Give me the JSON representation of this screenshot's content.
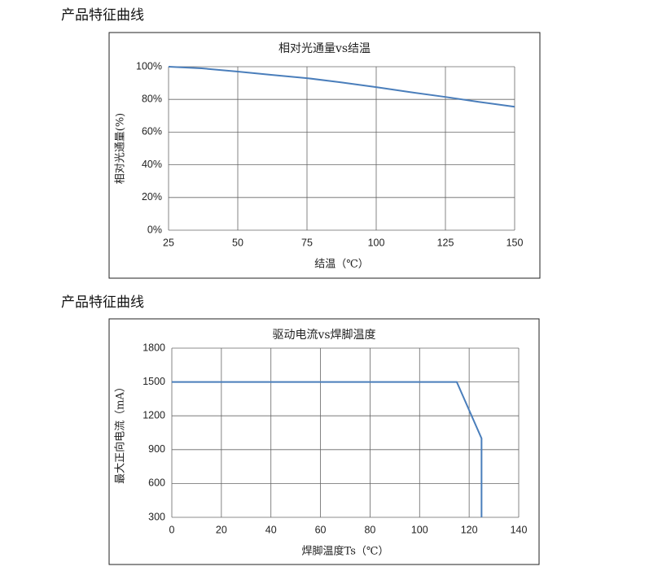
{
  "headings": [
    "产品特征曲线",
    "产品特征曲线"
  ],
  "chart_data": [
    {
      "type": "line",
      "title": "相对光通量vs结温",
      "x_label": "结温（℃）",
      "y_label": "相对光通量(%)",
      "x": [
        25,
        37,
        50,
        62,
        75,
        87,
        100,
        112,
        125,
        137,
        150
      ],
      "series": [
        {
          "color": "#4a7ebb",
          "values": [
            100,
            99,
            97,
            95,
            93,
            90.5,
            87.5,
            84.5,
            81.5,
            78.5,
            75.5
          ]
        }
      ],
      "xlim": [
        25,
        150
      ],
      "xticks": [
        25,
        50,
        75,
        100,
        125,
        150
      ],
      "ylim": [
        0,
        100
      ],
      "yticks": [
        {
          "value": 0,
          "label": "0%"
        },
        {
          "value": 20,
          "label": "20%"
        },
        {
          "value": 40,
          "label": "40%"
        },
        {
          "value": 60,
          "label": "60%"
        },
        {
          "value": 80,
          "label": "80%"
        },
        {
          "value": 100,
          "label": "100%"
        }
      ],
      "grid": true
    },
    {
      "type": "line",
      "title": "驱动电流vs焊脚温度",
      "x_label": "焊脚温度Ts（℃）",
      "y_label": "最大正向电流（mA）",
      "x": [
        0,
        115,
        125,
        125
      ],
      "series": [
        {
          "color": "#4a7ebb",
          "values": [
            1500,
            1500,
            1000,
            300
          ]
        }
      ],
      "xlim": [
        0,
        140
      ],
      "xticks": [
        0,
        20,
        40,
        60,
        80,
        100,
        120,
        140
      ],
      "ylim": [
        300,
        1800
      ],
      "yticks": [
        300,
        600,
        900,
        1200,
        1500,
        1800
      ],
      "grid": true
    }
  ]
}
